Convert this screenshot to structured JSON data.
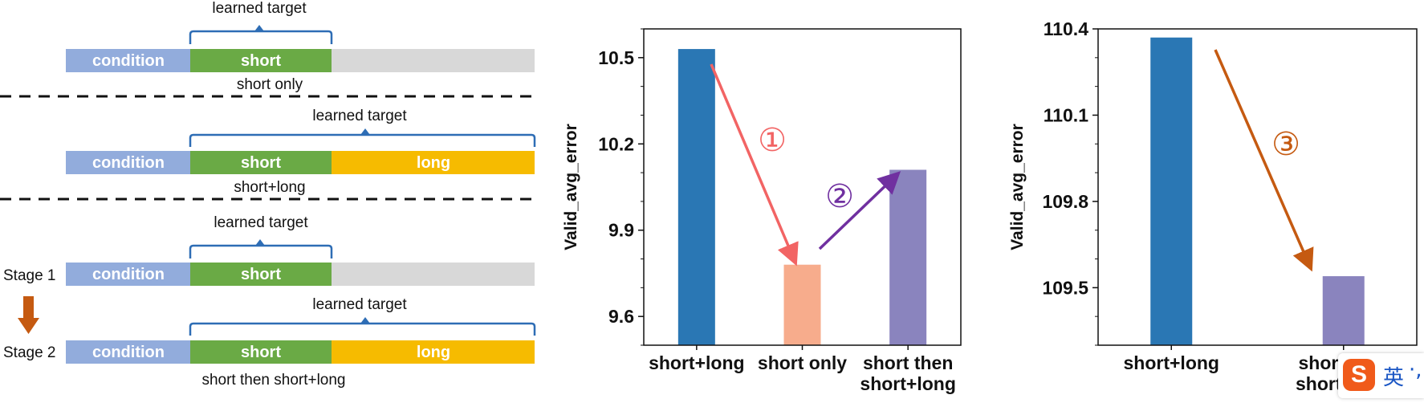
{
  "diagram": {
    "rows": [
      {
        "segments": {
          "condition": "condition",
          "short": "short"
        },
        "target_label": "learned target",
        "caption": "short only"
      },
      {
        "segments": {
          "condition": "condition",
          "short": "short",
          "long": "long"
        },
        "target_label": "learned target",
        "caption": "short+long"
      },
      {
        "segments": {
          "condition": "condition",
          "short": "short"
        },
        "target_label": "learned target",
        "stage": "Stage 1"
      },
      {
        "segments": {
          "condition": "condition",
          "short": "short",
          "long": "long"
        },
        "target_label": "learned target",
        "stage": "Stage 2",
        "caption": "short then short+long"
      }
    ],
    "colors": {
      "condition": "#92acdc",
      "short": "#6aaa45",
      "long": "#f6bb00",
      "empty": "#d8d8d8",
      "brace": "#2e6db5",
      "stage_arrow": "#c55a11"
    }
  },
  "chart_data": [
    {
      "type": "bar",
      "categories": [
        "short+long",
        "short only",
        "short then\nshort+long"
      ],
      "values": [
        10.53,
        9.78,
        10.11
      ],
      "colors": [
        "#2a77b4",
        "#f7ac8c",
        "#8a84be"
      ],
      "xlabel": "",
      "ylabel": "Valid_avg_error",
      "ylim": [
        9.5,
        10.6
      ],
      "yticks": [
        9.6,
        9.9,
        10.2,
        10.5
      ],
      "annotations": [
        {
          "text": "①",
          "color": "#f26464",
          "from_bar": 0,
          "to_bar": 1
        },
        {
          "text": "②",
          "color": "#7030a0",
          "from_bar": 1,
          "to_bar": 2
        }
      ]
    },
    {
      "type": "bar",
      "categories": [
        "short+long",
        "short then\nshort+long"
      ],
      "values": [
        110.37,
        109.54
      ],
      "colors": [
        "#2a77b4",
        "#8a84be"
      ],
      "xlabel": "",
      "ylabel": "Valid_avg_error",
      "ylim": [
        109.3,
        110.4
      ],
      "yticks": [
        109.5,
        109.8,
        110.1,
        110.4
      ],
      "annotations": [
        {
          "text": "③",
          "color": "#c55a11",
          "from_bar": 0,
          "to_bar": 1
        }
      ]
    }
  ],
  "ime_badge": {
    "text": "英",
    "dots": "·,"
  }
}
